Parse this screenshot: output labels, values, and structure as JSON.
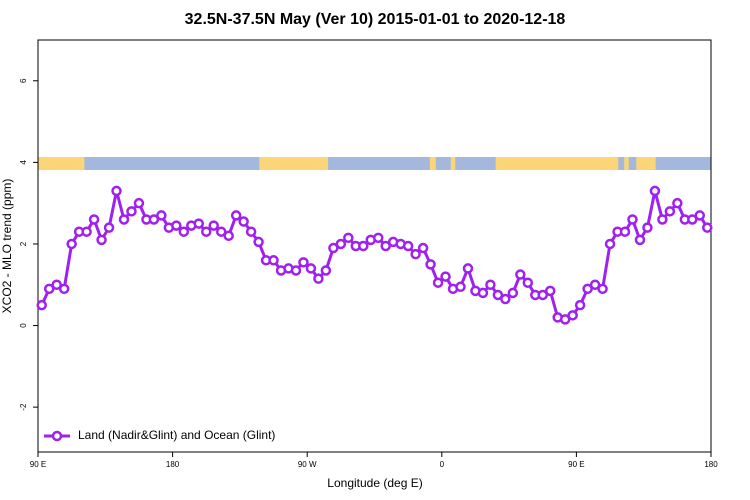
{
  "chart_data": {
    "type": "line",
    "title": "32.5N-37.5N May (Ver 10)   2015-01-01 to 2020-12-18",
    "x_label": "Longitude (deg E)",
    "y_label": "XCO2 - MLO trend (ppm)",
    "xlim": [
      90,
      540
    ],
    "ylim": [
      -3.1,
      7
    ],
    "xticks": [
      {
        "value": 90,
        "label": "90 E"
      },
      180,
      {
        "value": 270,
        "label": "90 W"
      },
      {
        "value": 360,
        "label": "0"
      },
      {
        "value": 450,
        "label": "90 E"
      },
      {
        "value": 540,
        "label": "180"
      }
    ],
    "yticks": [
      -2,
      0,
      2,
      4,
      6
    ],
    "legend": "bottomleft",
    "ocean_color": "#a3b8dc",
    "land_color": "#fbd577",
    "land_bands": [
      [
        90,
        121
      ],
      [
        102,
        107
      ],
      [
        238,
        284
      ],
      [
        352,
        356
      ],
      [
        366,
        369
      ],
      [
        396,
        478
      ],
      [
        482,
        485
      ],
      [
        490,
        503
      ]
    ],
    "series": [
      {
        "name": "Land (Nadir&Glint) and Ocean (Glint)",
        "color": "#a020f0",
        "x": [
          92.5,
          97.5,
          102.5,
          107.5,
          112.5,
          117.5,
          122.5,
          127.5,
          132.5,
          137.5,
          142.5,
          147.5,
          152.5,
          157.5,
          162.5,
          167.5,
          172.5,
          177.5,
          182.5,
          187.5,
          192.5,
          197.5,
          202.5,
          207.5,
          212.5,
          217.5,
          222.5,
          227.5,
          232.5,
          237.5,
          242.5,
          247.5,
          252.5,
          257.5,
          262.5,
          267.5,
          272.5,
          277.5,
          282.5,
          287.5,
          292.5,
          297.5,
          302.5,
          307.5,
          312.5,
          317.5,
          322.5,
          327.5,
          332.5,
          337.5,
          342.5,
          347.5,
          352.5,
          357.5,
          362.5,
          367.5,
          372.5,
          377.5,
          382.5,
          387.5,
          392.5,
          397.5,
          402.5,
          407.5,
          412.5,
          417.5,
          422.5,
          427.5,
          432.5,
          437.5,
          442.5,
          447.5,
          452.5,
          457.5,
          462.5,
          467.5,
          472.5,
          477.5,
          482.5,
          487.5,
          492.5,
          497.5,
          502.5,
          507.5,
          512.5,
          517.5,
          522.5,
          527.5,
          532.5,
          537.5
        ],
        "values": [
          0.5,
          0.9,
          1.0,
          0.9,
          2.0,
          2.3,
          2.3,
          2.6,
          2.1,
          2.4,
          3.3,
          2.6,
          2.8,
          3.0,
          2.6,
          2.6,
          2.7,
          2.4,
          2.45,
          2.3,
          2.45,
          2.5,
          2.3,
          2.45,
          2.3,
          2.2,
          2.7,
          2.55,
          2.3,
          2.05,
          1.6,
          1.6,
          1.35,
          1.4,
          1.35,
          1.55,
          1.4,
          1.15,
          1.35,
          1.9,
          2.0,
          2.15,
          1.95,
          1.95,
          2.1,
          2.15,
          1.95,
          2.05,
          2.0,
          1.95,
          1.75,
          1.9,
          1.5,
          1.05,
          1.2,
          0.9,
          0.95,
          1.4,
          0.85,
          0.8,
          1.0,
          0.75,
          0.65,
          0.8,
          1.25,
          1.05,
          0.75,
          0.75,
          0.85,
          0.2,
          0.15,
          0.25,
          0.5,
          0.9,
          1.0,
          0.9,
          2.0,
          2.3,
          2.3,
          2.6,
          2.1,
          2.4,
          3.3,
          2.6,
          2.8,
          3.0,
          2.6,
          2.6,
          2.7,
          2.4
        ]
      }
    ]
  }
}
